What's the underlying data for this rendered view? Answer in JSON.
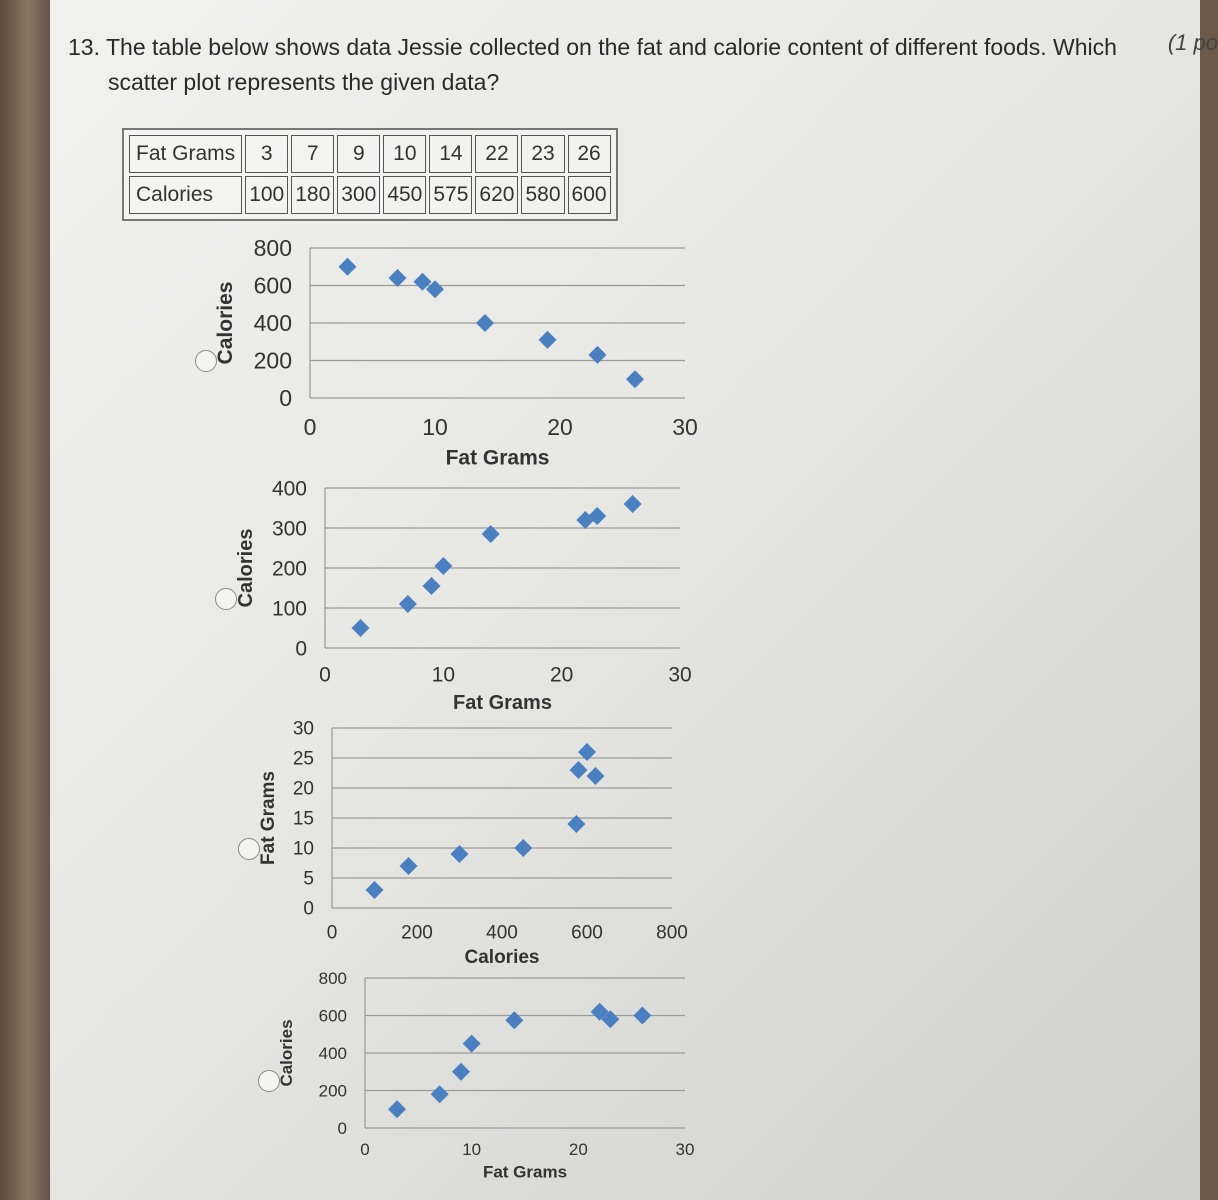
{
  "question": {
    "number": "13.",
    "line1": "The table below shows data Jessie collected on the fat and calorie content of different foods. Which",
    "line2": "scatter plot represents the given data?",
    "points": "(1 po"
  },
  "table": {
    "row1_label": "Fat Grams",
    "row2_label": "Calories",
    "fat_grams": [
      "3",
      "7",
      "9",
      "10",
      "14",
      "22",
      "23",
      "26"
    ],
    "calories": [
      "100",
      "180",
      "300",
      "450",
      "575",
      "620",
      "580",
      "600"
    ]
  },
  "colors": {
    "marker": "#4a7fc0",
    "grid": "#9a9a9a",
    "text": "#333333"
  },
  "icons": {
    "option": "radio-button-icon",
    "marker": "diamond-marker-icon"
  },
  "chart_data": [
    {
      "type": "scatter",
      "xlabel": "Fat Grams",
      "ylabel": "Calories",
      "xlim": [
        0,
        30
      ],
      "ylim": [
        0,
        800
      ],
      "xticks": [
        "0",
        "10",
        "20",
        "30"
      ],
      "yticks": [
        "0",
        "200",
        "400",
        "600",
        "800"
      ],
      "x": [
        3,
        7,
        9,
        10,
        14,
        19,
        23,
        26
      ],
      "y": [
        700,
        640,
        620,
        580,
        400,
        310,
        230,
        100
      ],
      "grid": true,
      "legend": "none"
    },
    {
      "type": "scatter",
      "xlabel": "Fat Grams",
      "ylabel": "Calories",
      "xlim": [
        0,
        30
      ],
      "ylim": [
        0,
        400
      ],
      "xticks": [
        "0",
        "10",
        "20",
        "30"
      ],
      "yticks": [
        "0",
        "100",
        "200",
        "300",
        "400"
      ],
      "x": [
        3,
        7,
        9,
        10,
        14,
        22,
        23,
        26
      ],
      "y": [
        50,
        110,
        155,
        205,
        285,
        320,
        330,
        360
      ],
      "grid": true,
      "legend": "none"
    },
    {
      "type": "scatter",
      "xlabel": "Calories",
      "ylabel": "Fat Grams",
      "xlim": [
        0,
        800
      ],
      "ylim": [
        0,
        30
      ],
      "xticks": [
        "0",
        "200",
        "400",
        "600",
        "800"
      ],
      "yticks": [
        "0",
        "5",
        "10",
        "15",
        "20",
        "25",
        "30"
      ],
      "x": [
        100,
        180,
        300,
        450,
        575,
        620,
        580,
        600
      ],
      "y": [
        3,
        7,
        9,
        10,
        14,
        22,
        23,
        26
      ],
      "grid": true,
      "legend": "none"
    },
    {
      "type": "scatter",
      "xlabel": "Fat Grams",
      "ylabel": "Calories",
      "xlim": [
        0,
        30
      ],
      "ylim": [
        0,
        800
      ],
      "xticks": [
        "0",
        "10",
        "20",
        "30"
      ],
      "yticks": [
        "0",
        "200",
        "400",
        "600",
        "800"
      ],
      "x": [
        3,
        7,
        9,
        10,
        14,
        22,
        23,
        26
      ],
      "y": [
        100,
        180,
        300,
        450,
        575,
        620,
        580,
        600
      ],
      "grid": true,
      "legend": "none"
    }
  ]
}
